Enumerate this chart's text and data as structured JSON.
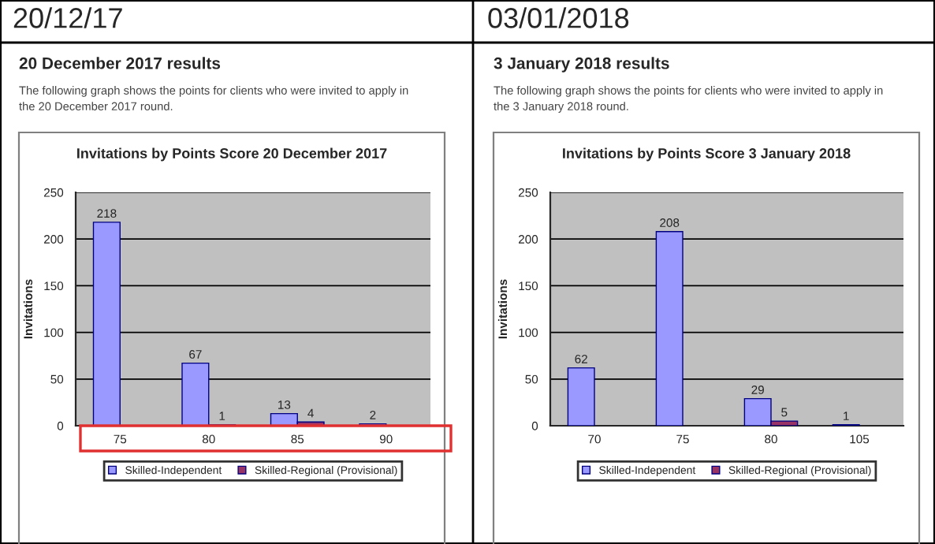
{
  "chart_data": [
    {
      "type": "bar",
      "title": "Invitations by Points Score 20 December 2017",
      "subtitle": "20 December 2017 results",
      "annotations": [
        "20/12/17",
        "The following graph shows the points for clients who were invited to apply in\nthe 20 December 2017 round."
      ],
      "ylabel": "Invitations",
      "categories": [
        "75",
        "80",
        "85",
        "90"
      ],
      "series": [
        {
          "name": "Skilled-Independent",
          "color": "#9999ff",
          "values": [
            218,
            67,
            13,
            2
          ]
        },
        {
          "name": "Skilled-Regional (Provisional)",
          "color": "#993366",
          "values": [
            null,
            1,
            4,
            null
          ]
        }
      ],
      "ylim": [
        0,
        250
      ],
      "yticks": [
        0,
        50,
        100,
        150,
        200,
        250
      ],
      "grid": "y",
      "legend": "bottom",
      "data_labels": true
    },
    {
      "type": "bar",
      "title": "Invitations by Points Score 3 January 2018",
      "subtitle": "3 January 2018 results",
      "annotations": [
        "03/01/2018",
        "The following graph shows the points for clients who were invited to apply in\nthe 3 January 2018 round."
      ],
      "ylabel": "Invitations",
      "categories": [
        "70",
        "75",
        "80",
        "105"
      ],
      "series": [
        {
          "name": "Skilled-Independent",
          "color": "#9999ff",
          "values": [
            62,
            208,
            29,
            1
          ]
        },
        {
          "name": "Skilled-Regional (Provisional)",
          "color": "#993366",
          "values": [
            null,
            null,
            5,
            null
          ]
        }
      ],
      "ylim": [
        0,
        250
      ],
      "yticks": [
        0,
        50,
        100,
        150,
        200,
        250
      ],
      "grid": "y",
      "legend": "bottom",
      "data_labels": true
    }
  ]
}
